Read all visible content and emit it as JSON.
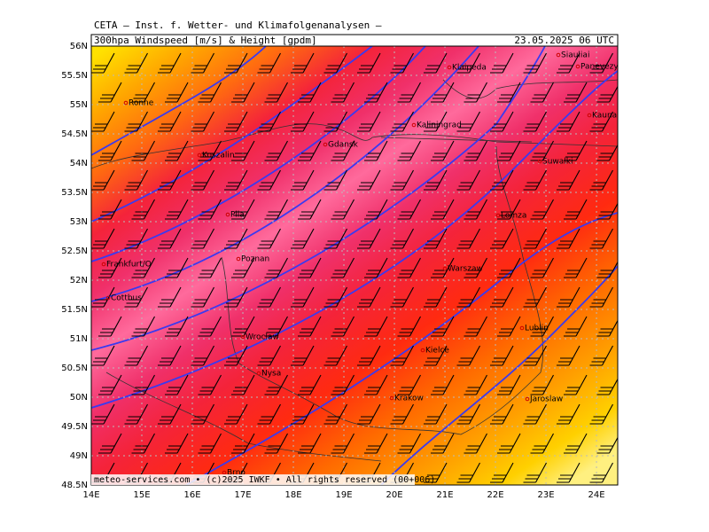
{
  "header": {
    "title": "CETA – Inst. f. Wetter- und Klimafolgenanalysen –",
    "subtitle": "300hpa Windspeed [m/s] & Height [gpdm]",
    "valid_time": "23.05.2025 06 UTC"
  },
  "map": {
    "xlim": [
      14,
      24.42
    ],
    "ylim": [
      48.5,
      56
    ],
    "xticks": [
      {
        "value": 14,
        "label": "14E"
      },
      {
        "value": 15,
        "label": "15E"
      },
      {
        "value": 16,
        "label": "16E"
      },
      {
        "value": 17,
        "label": "17E"
      },
      {
        "value": 18,
        "label": "18E"
      },
      {
        "value": 19,
        "label": "19E"
      },
      {
        "value": 20,
        "label": "20E"
      },
      {
        "value": 21,
        "label": "21E"
      },
      {
        "value": 22,
        "label": "22E"
      },
      {
        "value": 23,
        "label": "23E"
      },
      {
        "value": 24,
        "label": "24E"
      }
    ],
    "yticks": [
      {
        "value": 48.5,
        "label": "48.5N"
      },
      {
        "value": 49,
        "label": "49N"
      },
      {
        "value": 49.5,
        "label": "49.5N"
      },
      {
        "value": 50,
        "label": "50N"
      },
      {
        "value": 50.5,
        "label": "50.5N"
      },
      {
        "value": 51,
        "label": "51N"
      },
      {
        "value": 51.5,
        "label": "51.5N"
      },
      {
        "value": 52,
        "label": "52N"
      },
      {
        "value": 52.5,
        "label": "52.5N"
      },
      {
        "value": 53,
        "label": "53N"
      },
      {
        "value": 53.5,
        "label": "53.5N"
      },
      {
        "value": 54,
        "label": "54N"
      },
      {
        "value": 54.5,
        "label": "54.5N"
      },
      {
        "value": 55,
        "label": "55N"
      },
      {
        "value": 55.5,
        "label": "55.5N"
      },
      {
        "value": 56,
        "label": "56N"
      }
    ],
    "cities": [
      "Ronne",
      "Klaipeda",
      "Siauliai",
      "Panevezys",
      "Kaunas",
      "Kaliningrad",
      "Gdansk",
      "Koszalin",
      "Suwalki",
      "Pila",
      "Lomza",
      "Poznan",
      "Frankfurt/O",
      "Warszaw",
      "Cottbus",
      "Wroclaw",
      "Lublin",
      "Kielce",
      "Nysa",
      "Krakow",
      "Jaroslaw",
      "Brno"
    ]
  },
  "footer": "meteo-services.com • (c)2025 IWKF • All rights reserved (00+006)"
}
